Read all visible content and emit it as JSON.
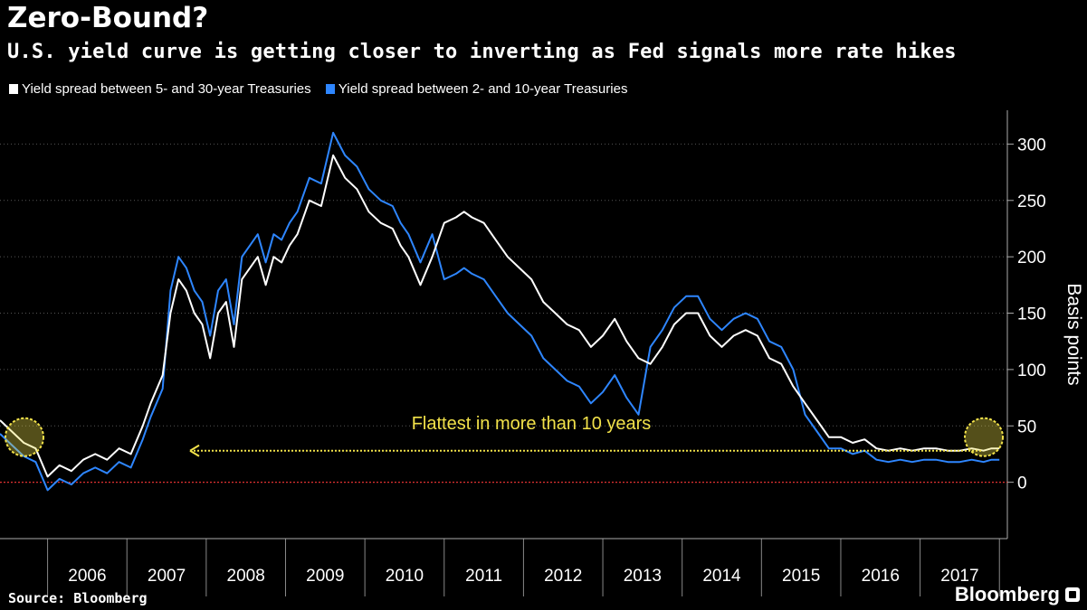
{
  "header": {
    "title": "Zero-Bound?",
    "subtitle": "U.S. yield curve is getting closer to inverting as Fed signals more rate hikes"
  },
  "legend": {
    "items": [
      {
        "label": "Yield spread between 5- and 30-year Treasuries",
        "color": "#ffffff"
      },
      {
        "label": "Yield spread between 2- and 10-year Treasuries",
        "color": "#2e86ff"
      }
    ]
  },
  "chart_data": {
    "type": "line",
    "ylabel": "Basis points",
    "ylim": [
      -50,
      330
    ],
    "yticks": [
      0,
      50,
      100,
      150,
      200,
      250,
      300
    ],
    "x_range": [
      2005.4,
      2018.1
    ],
    "x_tick_labels": [
      "2006",
      "2007",
      "2008",
      "2009",
      "2010",
      "2011",
      "2012",
      "2013",
      "2014",
      "2015",
      "2016",
      "2017"
    ],
    "grid": true,
    "zero_line_color": "#e03030",
    "series": [
      {
        "name": "Yield spread between 5- and 30-year Treasuries",
        "color": "#ffffff",
        "x": [
          2005.4,
          2005.55,
          2005.7,
          2005.85,
          2006.0,
          2006.15,
          2006.3,
          2006.45,
          2006.6,
          2006.75,
          2006.9,
          2007.05,
          2007.2,
          2007.3,
          2007.45,
          2007.55,
          2007.65,
          2007.75,
          2007.85,
          2007.95,
          2008.05,
          2008.15,
          2008.25,
          2008.35,
          2008.45,
          2008.55,
          2008.65,
          2008.75,
          2008.85,
          2008.95,
          2009.05,
          2009.15,
          2009.3,
          2009.45,
          2009.6,
          2009.75,
          2009.9,
          2010.05,
          2010.2,
          2010.35,
          2010.45,
          2010.55,
          2010.7,
          2010.85,
          2011.0,
          2011.15,
          2011.25,
          2011.35,
          2011.5,
          2011.65,
          2011.8,
          2011.95,
          2012.1,
          2012.25,
          2012.4,
          2012.55,
          2012.7,
          2012.85,
          2013.0,
          2013.15,
          2013.3,
          2013.45,
          2013.6,
          2013.75,
          2013.9,
          2014.05,
          2014.2,
          2014.35,
          2014.5,
          2014.65,
          2014.8,
          2014.95,
          2015.1,
          2015.25,
          2015.4,
          2015.55,
          2015.7,
          2015.85,
          2016.0,
          2016.15,
          2016.3,
          2016.45,
          2016.6,
          2016.75,
          2016.9,
          2017.05,
          2017.2,
          2017.35,
          2017.5,
          2017.65,
          2017.8,
          2017.9,
          2018.0
        ],
        "values": [
          55,
          45,
          35,
          30,
          5,
          15,
          10,
          20,
          25,
          20,
          30,
          25,
          50,
          70,
          95,
          150,
          180,
          170,
          150,
          140,
          110,
          150,
          160,
          120,
          180,
          190,
          200,
          175,
          200,
          195,
          210,
          220,
          250,
          245,
          290,
          270,
          260,
          240,
          230,
          225,
          210,
          200,
          175,
          200,
          230,
          235,
          240,
          235,
          230,
          215,
          200,
          190,
          180,
          160,
          150,
          140,
          135,
          120,
          130,
          145,
          125,
          110,
          105,
          120,
          140,
          150,
          150,
          130,
          120,
          130,
          135,
          130,
          110,
          105,
          85,
          70,
          55,
          40,
          40,
          35,
          38,
          30,
          28,
          30,
          28,
          30,
          30,
          28,
          28,
          30,
          28,
          30,
          30
        ],
        "note": "approximate"
      },
      {
        "name": "Yield spread between 2- and 10-year Treasuries",
        "color": "#2e86ff",
        "values": []
      }
    ]
  },
  "annotation": {
    "text": "Flattest in more than 10 years",
    "color": "#f2e24a"
  },
  "footer": {
    "source": "Source: Bloomberg",
    "brand": "Bloomberg"
  }
}
